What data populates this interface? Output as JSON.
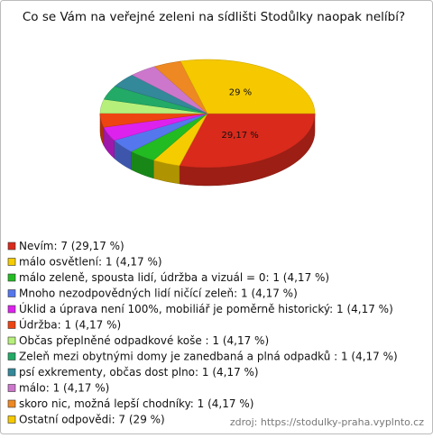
{
  "chart_data": {
    "type": "pie3d",
    "title": "Co se Vám na veřejné zeleni na sídlišti Stodůlky naopak nelíbí?",
    "categories": [
      "Nevím: 7 (29,17 %)",
      "málo osvětlení: 1 (4,17 %)",
      "málo zeleně, spousta lidí, údržba a vizuál = 0: 1 (4,17 %)",
      "Mnoho nezodpovědných lidí ničící zeleň: 1 (4,17 %)",
      "Úklid a úprava není 100%, mobiliář je poměrně historický: 1 (4,17 %)",
      "Údržba: 1 (4,17 %)",
      "Občas přeplněné odpadkové koše : 1 (4,17 %)",
      "Zeleň mezi obytnými domy je zanedbaná a plná odpadků : 1 (4,17 %)",
      "psí exkrementy, občas dost plno: 1 (4,17 %)",
      "málo: 1 (4,17 %)",
      "skoro nic, možná lepší chodníky: 1 (4,17 %)",
      "Ostatní odpovědi: 7 (29 %)"
    ],
    "values": [
      29.17,
      4.17,
      4.17,
      4.17,
      4.17,
      4.17,
      4.17,
      4.17,
      4.17,
      4.17,
      4.17,
      29
    ],
    "value_labels": [
      "29,17 %",
      null,
      null,
      null,
      null,
      null,
      null,
      null,
      null,
      null,
      null,
      "29 %"
    ],
    "colors": [
      "#d92a1c",
      "#f5cc00",
      "#22bb22",
      "#5577ee",
      "#dd22ee",
      "#ee4411",
      "#b6f07a",
      "#22aa66",
      "#338899",
      "#cc77cc",
      "#ee8822",
      "#f5c800"
    ],
    "source": "zdroj: https://stodulky-praha.vyplnto.cz"
  }
}
